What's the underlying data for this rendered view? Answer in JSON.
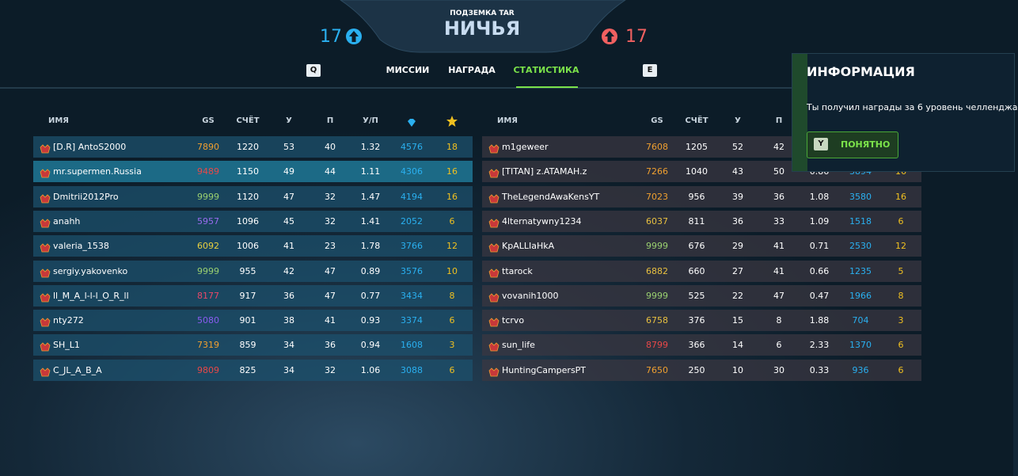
{
  "header": {
    "map": "ПОДЗЕМКА TAR",
    "result": "НИЧЬЯ",
    "left_score": 17,
    "right_score": 17
  },
  "tabs": {
    "prev_key": "Q",
    "items": [
      "МИССИИ",
      "НАГРАДА",
      "СТАТИСТИКА"
    ],
    "active": 2,
    "next_key": "E"
  },
  "left_table": {
    "columns": [
      "ИМЯ",
      "GS",
      "СЧЁТ",
      "У",
      "П",
      "У/П"
    ],
    "rows": [
      {
        "name": "[D.R] AntoS2000",
        "gs": 7890,
        "gs_color": "#f0a030",
        "score": 1220,
        "kills": 53,
        "deaths": 40,
        "kd": 1.32,
        "crystals": 4576,
        "stars": 18
      },
      {
        "name": "mr.supermen.Russia",
        "gs": 9489,
        "gs_color": "#e84848",
        "score": 1150,
        "kills": 49,
        "deaths": 44,
        "kd": 1.11,
        "crystals": 4306,
        "stars": 16
      },
      {
        "name": "Dmitrii2012Pro",
        "gs": 9999,
        "gs_color": "#9ad070",
        "score": 1120,
        "kills": 47,
        "deaths": 32,
        "kd": 1.47,
        "crystals": 4194,
        "stars": 16
      },
      {
        "name": "anahh",
        "gs": 5957,
        "gs_color": "#9a6cf0",
        "score": 1096,
        "kills": 45,
        "deaths": 32,
        "kd": 1.41,
        "crystals": 2052,
        "stars": 6
      },
      {
        "name": "valeria_1538",
        "gs": 6092,
        "gs_color": "#e8d040",
        "score": 1006,
        "kills": 41,
        "deaths": 23,
        "kd": 1.78,
        "crystals": 3766,
        "stars": 12
      },
      {
        "name": "sergiy.yakovenko",
        "gs": 9999,
        "gs_color": "#9ad070",
        "score": 955,
        "kills": 42,
        "deaths": 47,
        "kd": 0.89,
        "crystals": 3576,
        "stars": 10
      },
      {
        "name": "ll_M_A_l-l-l_O_R_ll",
        "gs": 8177,
        "gs_color": "#e84868",
        "score": 917,
        "kills": 36,
        "deaths": 47,
        "kd": 0.77,
        "crystals": 3434,
        "stars": 8
      },
      {
        "name": "nty272",
        "gs": 5080,
        "gs_color": "#8a5cf0",
        "score": 901,
        "kills": 38,
        "deaths": 41,
        "kd": 0.93,
        "crystals": 3374,
        "stars": 6
      },
      {
        "name": "SH_L1",
        "gs": 7319,
        "gs_color": "#f0a030",
        "score": 859,
        "kills": 34,
        "deaths": 36,
        "kd": 0.94,
        "crystals": 1608,
        "stars": 3
      },
      {
        "name": "C_JL_A_B_A",
        "gs": 9809,
        "gs_color": "#e84848",
        "score": 825,
        "kills": 34,
        "deaths": 32,
        "kd": 1.06,
        "crystals": 3088,
        "stars": 6
      }
    ]
  },
  "right_table": {
    "columns": [
      "ИМЯ",
      "GS",
      "СЧЁТ",
      "У",
      "П"
    ],
    "rows": [
      {
        "name": "m1geweer",
        "gs": 7608,
        "gs_color": "#f0a030",
        "score": 1205,
        "kills": 52,
        "deaths": 42,
        "kd": null,
        "crystals": null,
        "stars": null
      },
      {
        "name": "[TITAN] z.ATAMAH.z",
        "gs": 7266,
        "gs_color": "#f0a030",
        "score": 1040,
        "kills": 43,
        "deaths": 50,
        "kd": 0.86,
        "crystals": 3894,
        "stars": 16
      },
      {
        "name": "TheLegendAwaKensYT",
        "gs": 7023,
        "gs_color": "#f0a030",
        "score": 956,
        "kills": 39,
        "deaths": 36,
        "kd": 1.08,
        "crystals": 3580,
        "stars": 16
      },
      {
        "name": "4lternatywny1234",
        "gs": 6037,
        "gs_color": "#e8c040",
        "score": 811,
        "kills": 36,
        "deaths": 33,
        "kd": 1.09,
        "crystals": 1518,
        "stars": 6
      },
      {
        "name": "KpALLIaHkA",
        "gs": 9999,
        "gs_color": "#9ad070",
        "score": 676,
        "kills": 29,
        "deaths": 41,
        "kd": 0.71,
        "crystals": 2530,
        "stars": 12
      },
      {
        "name": "ttarock",
        "gs": 6882,
        "gs_color": "#e8c040",
        "score": 660,
        "kills": 27,
        "deaths": 41,
        "kd": 0.66,
        "crystals": 1235,
        "stars": 5
      },
      {
        "name": "vovanih1000",
        "gs": 9999,
        "gs_color": "#9ad070",
        "score": 525,
        "kills": 22,
        "deaths": 47,
        "kd": 0.47,
        "crystals": 1966,
        "stars": 8
      },
      {
        "name": "tcrvo",
        "gs": 6758,
        "gs_color": "#e8c040",
        "score": 376,
        "kills": 15,
        "deaths": 8,
        "kd": 1.88,
        "crystals": 704,
        "stars": 3
      },
      {
        "name": "sun_life",
        "gs": 8799,
        "gs_color": "#e84848",
        "score": 366,
        "kills": 14,
        "deaths": 6,
        "kd": 2.33,
        "crystals": 1370,
        "stars": 6
      },
      {
        "name": "HuntingCampersPT",
        "gs": 7650,
        "gs_color": "#f0a030",
        "score": 250,
        "kills": 10,
        "deaths": 30,
        "kd": 0.33,
        "crystals": 936,
        "stars": 6
      }
    ]
  },
  "popup": {
    "title": "ИНФОРМАЦИЯ",
    "text": "Ты получил награды за 6 уровень челленджа",
    "key": "Y",
    "button": "ПОНЯТНО"
  }
}
